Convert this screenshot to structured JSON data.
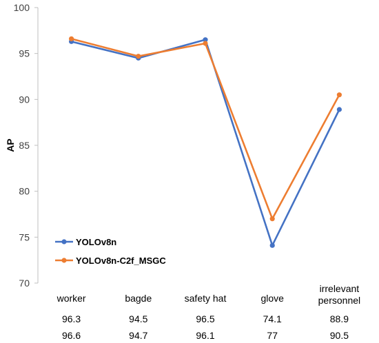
{
  "chart_data": {
    "type": "line",
    "ylabel": "AP",
    "ylim": [
      70,
      100
    ],
    "yticks": [
      70,
      75,
      80,
      85,
      90,
      95,
      100
    ],
    "categories": [
      [
        "worker"
      ],
      [
        "bagde"
      ],
      [
        "safety hat"
      ],
      [
        "glove"
      ],
      [
        "irrelevant",
        "personnel"
      ]
    ],
    "series": [
      {
        "name": "YOLOv8n",
        "color": "#4472C4",
        "values": [
          96.3,
          94.5,
          96.5,
          74.1,
          88.9
        ]
      },
      {
        "name": "YOLOv8n-C2f_MSGC",
        "color": "#ED7D31",
        "values": [
          96.6,
          94.7,
          96.1,
          77,
          90.5
        ]
      }
    ],
    "legend_position": "bottom-left",
    "grid": false
  }
}
